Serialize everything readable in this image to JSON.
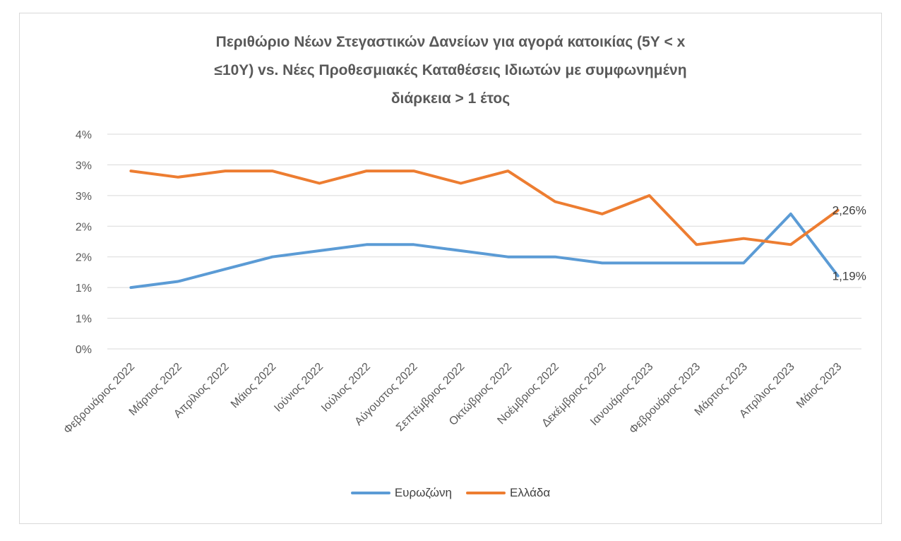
{
  "chart_data": {
    "type": "line",
    "title_lines": [
      "Περιθώριο Νέων Στεγαστικών Δανείων για αγορά κατοικίας (5Υ < x",
      "≤10Υ) vs. Νέες Προθεσμιακές Καταθέσεις Ιδιωτών με συμφωνημένη",
      "διάρκεια > 1 έτος"
    ],
    "categories": [
      "Φεβρουάριος 2022",
      "Μάρτιος 2022",
      "Απρίλιος 2022",
      "Μάιος 2022",
      "Ιούνιος 2022",
      "Ιούλιος 2022",
      "Αύγουστος 2022",
      "Σεπτέμβριος 2022",
      "Οκτώβριος 2022",
      "Νοέμβριος 2022",
      "Δεκέμβριος 2022",
      "Ιανουάριος 2023",
      "Φεβρουάριος 2023",
      "Μάρτιος 2023",
      "Απρίλιος 2023",
      "Μάιος 2023"
    ],
    "y_tick_labels": [
      "0%",
      "1%",
      "1%",
      "2%",
      "2%",
      "3%",
      "3%",
      "4%"
    ],
    "ylim": [
      0,
      3.5
    ],
    "y_tick_step": 0.5,
    "grid": true,
    "legend_position": "bottom",
    "series": [
      {
        "name": "Ευρωζώνη",
        "color": "#5b9bd5",
        "values": [
          1.0,
          1.1,
          1.3,
          1.5,
          1.6,
          1.7,
          1.7,
          1.6,
          1.5,
          1.5,
          1.4,
          1.4,
          1.4,
          1.4,
          2.2,
          1.19
        ],
        "end_label": "1,19%"
      },
      {
        "name": "Ελλάδα",
        "color": "#ed7d31",
        "values": [
          2.9,
          2.8,
          2.9,
          2.9,
          2.7,
          2.9,
          2.9,
          2.7,
          2.9,
          2.4,
          2.2,
          2.5,
          1.7,
          1.8,
          1.7,
          2.26
        ],
        "end_label": "2,26%"
      }
    ]
  }
}
